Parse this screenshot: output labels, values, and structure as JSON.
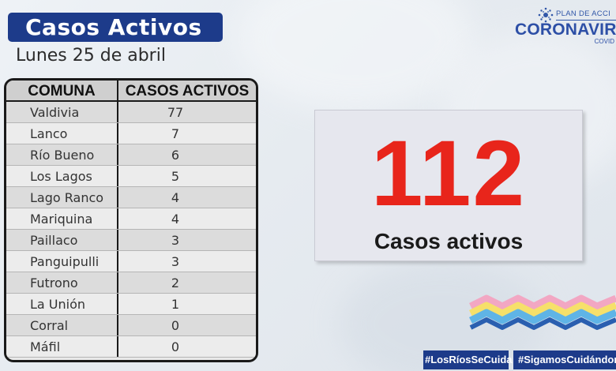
{
  "header": {
    "title": "Casos Activos",
    "date": "Lunes 25 de abril"
  },
  "logo": {
    "plan_text": "PLAN DE ACCI",
    "main_text": "CORONAVIRU",
    "sub_text": "COVID",
    "colors": {
      "brand": "#2d4fa6"
    }
  },
  "table": {
    "headers": {
      "comuna": "COMUNA",
      "casos": "CASOS ACTIVOS"
    },
    "rows": [
      {
        "comuna": "Valdivia",
        "casos": "77"
      },
      {
        "comuna": "Lanco",
        "casos": "7"
      },
      {
        "comuna": "Río Bueno",
        "casos": "6"
      },
      {
        "comuna": "Los Lagos",
        "casos": "5"
      },
      {
        "comuna": "Lago Ranco",
        "casos": "4"
      },
      {
        "comuna": "Mariquina",
        "casos": "4"
      },
      {
        "comuna": "Paillaco",
        "casos": "3"
      },
      {
        "comuna": "Panguipulli",
        "casos": "3"
      },
      {
        "comuna": "Futrono",
        "casos": "2"
      },
      {
        "comuna": "La Unión",
        "casos": "1"
      },
      {
        "comuna": "Corral",
        "casos": "0"
      },
      {
        "comuna": "Máfil",
        "casos": "0"
      }
    ]
  },
  "summary": {
    "total": "112",
    "label": "Casos activos",
    "colors": {
      "number": "#e8251b"
    }
  },
  "footer": {
    "hashtag1": "#LosRíosSeCuida",
    "hashtag2": "#SigamosCuidándon"
  },
  "colors": {
    "title_bg": "#1d3b8a",
    "zigzag": [
      "#f2a7c3",
      "#f6e06a",
      "#5fb4e6",
      "#2a5fb0"
    ]
  }
}
